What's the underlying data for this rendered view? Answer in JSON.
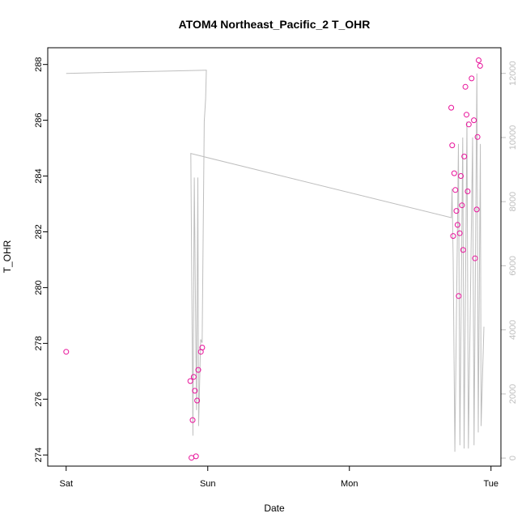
{
  "chart_data": {
    "type": "scatter",
    "title": "ATOM4 Northeast_Pacific_2 T_OHR",
    "xlabel": "Date",
    "ylabel": "T_OHR",
    "x_tick_labels": [
      "Sat",
      "Sun",
      "Mon",
      "Tue"
    ],
    "x_tick_values": [
      0,
      1,
      2,
      3
    ],
    "xlim": [
      -0.13,
      3.07
    ],
    "ylim": [
      273.6,
      288.6
    ],
    "y_ticks": [
      274,
      276,
      278,
      280,
      282,
      284,
      286,
      288
    ],
    "y2lim": [
      -250,
      12800
    ],
    "y2_ticks": [
      0,
      2000,
      4000,
      6000,
      8000,
      10000,
      12000
    ],
    "colors": {
      "points": "#e8119a",
      "line": "#bebebe",
      "axis": "#000000",
      "right_axis": "#bebebe"
    },
    "points": [
      [
        0.0,
        277.7
      ],
      [
        0.877,
        276.65
      ],
      [
        0.885,
        273.9
      ],
      [
        0.893,
        275.25
      ],
      [
        0.901,
        276.8
      ],
      [
        0.909,
        276.3
      ],
      [
        0.917,
        273.95
      ],
      [
        0.925,
        275.95
      ],
      [
        0.933,
        277.05
      ],
      [
        0.951,
        277.7
      ],
      [
        0.961,
        277.85
      ],
      [
        2.719,
        286.45
      ],
      [
        2.726,
        285.1
      ],
      [
        2.733,
        281.85
      ],
      [
        2.74,
        284.1
      ],
      [
        2.748,
        283.5
      ],
      [
        2.756,
        282.75
      ],
      [
        2.764,
        282.25
      ],
      [
        2.772,
        279.7
      ],
      [
        2.779,
        281.95
      ],
      [
        2.787,
        284.0
      ],
      [
        2.795,
        282.95
      ],
      [
        2.803,
        281.35
      ],
      [
        2.811,
        284.7
      ],
      [
        2.819,
        287.2
      ],
      [
        2.827,
        286.2
      ],
      [
        2.835,
        283.45
      ],
      [
        2.843,
        285.85
      ],
      [
        2.863,
        287.5
      ],
      [
        2.879,
        286.0
      ],
      [
        2.887,
        281.05
      ],
      [
        2.899,
        282.8
      ],
      [
        2.905,
        285.4
      ],
      [
        2.913,
        288.15
      ],
      [
        2.923,
        287.95
      ]
    ],
    "series_right": [
      [
        0.0,
        12000
      ],
      [
        0.99,
        12100
      ],
      [
        0.985,
        11200
      ],
      [
        0.975,
        10500
      ],
      [
        0.96,
        3600
      ],
      [
        0.95,
        3700
      ],
      [
        0.935,
        1000
      ],
      [
        0.93,
        8750
      ],
      [
        0.92,
        1500
      ],
      [
        0.905,
        8750
      ],
      [
        0.895,
        700
      ],
      [
        0.88,
        9500
      ],
      [
        2.72,
        7500
      ],
      [
        2.725,
        8400
      ],
      [
        2.733,
        6200
      ],
      [
        2.745,
        200
      ],
      [
        2.77,
        9800
      ],
      [
        2.78,
        400
      ],
      [
        2.8,
        10000
      ],
      [
        2.81,
        300
      ],
      [
        2.83,
        10500
      ],
      [
        2.84,
        300
      ],
      [
        2.87,
        10000
      ],
      [
        2.88,
        400
      ],
      [
        2.9,
        12000
      ],
      [
        2.91,
        800
      ],
      [
        2.925,
        9800
      ],
      [
        2.93,
        1000
      ],
      [
        2.95,
        4100
      ]
    ]
  }
}
